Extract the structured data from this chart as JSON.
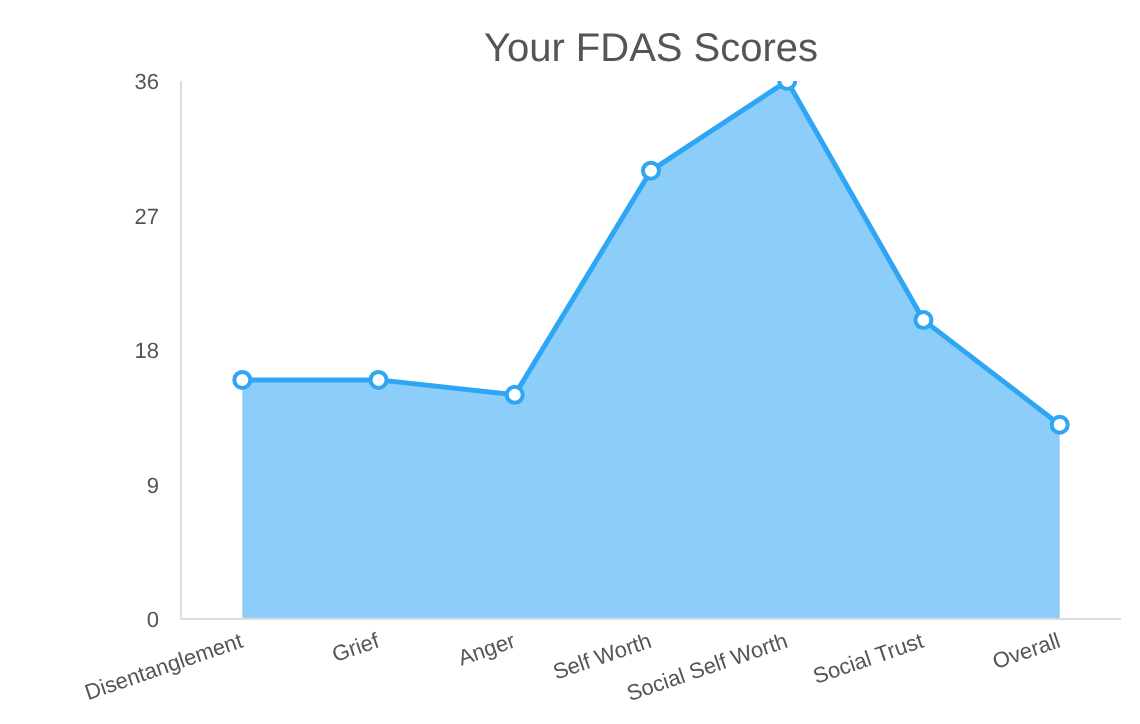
{
  "chart_data": {
    "type": "area",
    "title": "Your FDAS Scores",
    "categories": [
      "Disentanglement",
      "Grief",
      "Anger",
      "Self Worth",
      "Social Self Worth",
      "Social Trust",
      "Overall"
    ],
    "values": [
      16,
      16,
      15,
      30,
      36,
      20,
      13
    ],
    "color": "#2ea6f4",
    "ylim": [
      0,
      36
    ],
    "yticks": [
      0,
      9,
      18,
      27,
      36
    ],
    "grid": false,
    "marker": "circle",
    "line_style": "solid"
  }
}
